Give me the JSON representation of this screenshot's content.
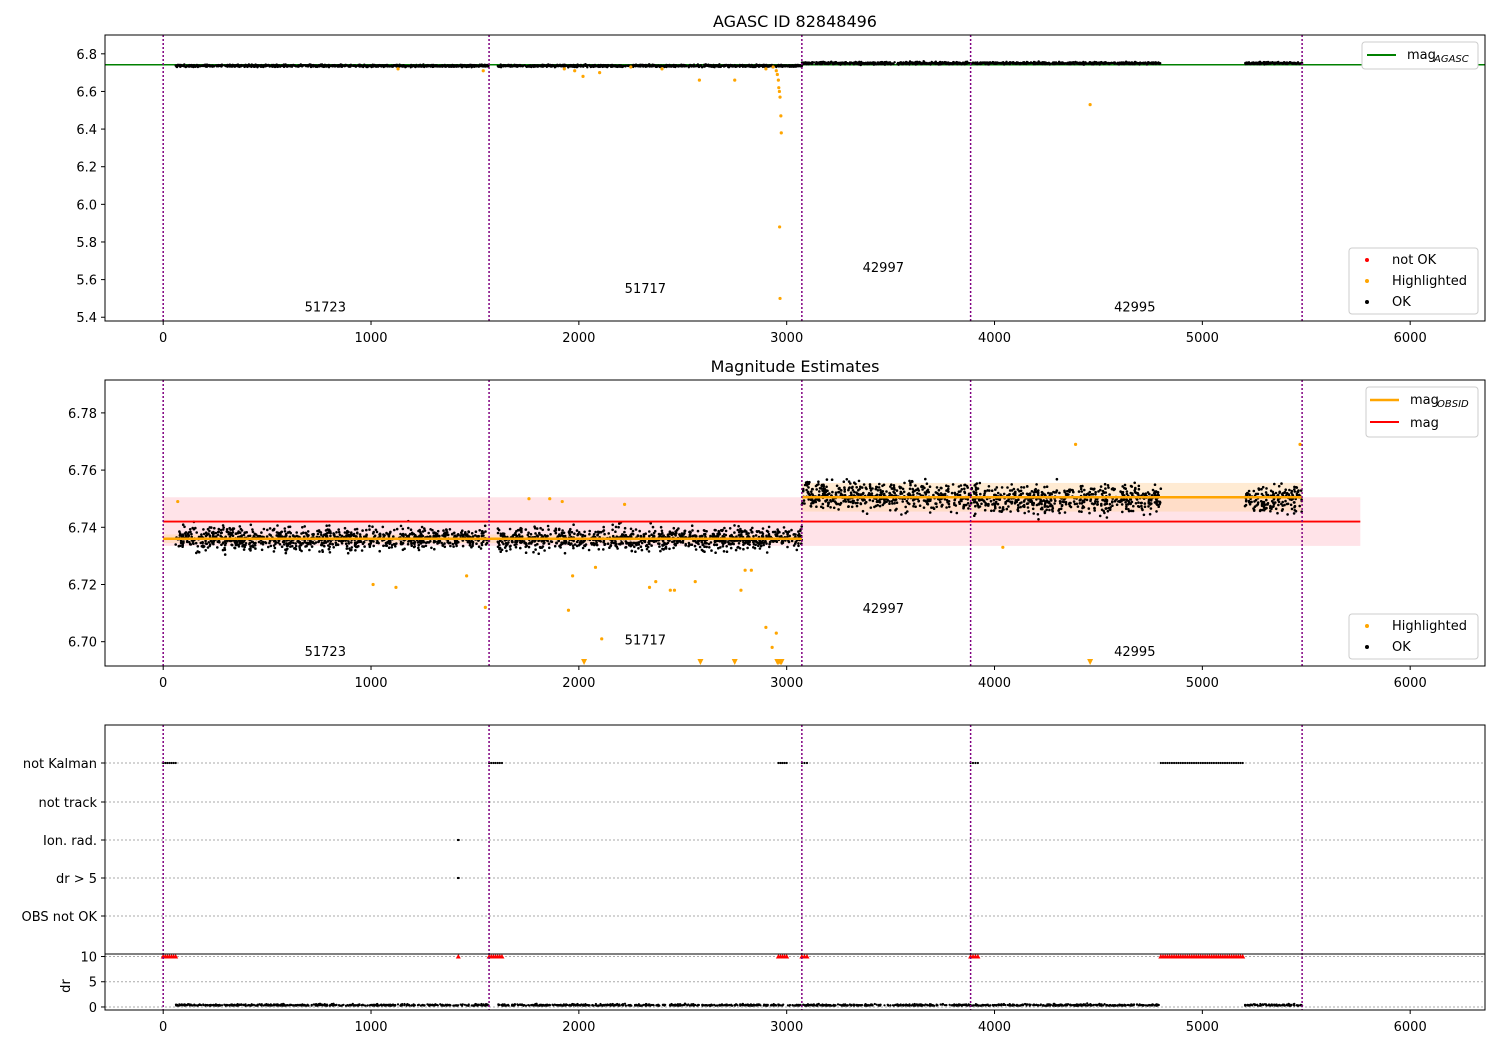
{
  "chart_data": [
    {
      "type": "scatter",
      "title": "AGASC ID 82848496",
      "xlim": [
        -280,
        6360
      ],
      "ylim": [
        5.38,
        6.9
      ],
      "x_ticks": [
        0,
        1000,
        2000,
        3000,
        4000,
        5000,
        6000
      ],
      "y_ticks": [
        5.4,
        5.6,
        5.8,
        6.0,
        6.2,
        6.4,
        6.6,
        6.8
      ],
      "y_tick_labels": [
        "5.4",
        "5.6",
        "5.8",
        "6.0",
        "6.2",
        "6.4",
        "6.6",
        "6.8"
      ],
      "obs_boundaries": [
        0,
        1568,
        3073,
        3885,
        5480
      ],
      "obsid_labels": [
        {
          "text": "51723",
          "x": 780,
          "y": 5.43
        },
        {
          "text": "51717",
          "x": 2320,
          "y": 5.53
        },
        {
          "text": "42997",
          "x": 3465,
          "y": 5.64
        },
        {
          "text": "42995",
          "x": 4675,
          "y": 5.43
        }
      ],
      "reference_line": {
        "name": "mag",
        "subscript": "AGASC",
        "y": 6.742,
        "x_range": [
          -280,
          6360
        ],
        "color": "#008000"
      },
      "segments": [
        {
          "x_range": [
            60,
            1568
          ],
          "mean": 6.736,
          "spread": 0.006
        },
        {
          "x_range": [
            1610,
            3073
          ],
          "mean": 6.736,
          "spread": 0.006
        },
        {
          "x_range": [
            3073,
            3885
          ],
          "mean": 6.75,
          "spread": 0.007
        },
        {
          "x_range": [
            3885,
            4800
          ],
          "mean": 6.75,
          "spread": 0.006
        },
        {
          "x_range": [
            5205,
            5480
          ],
          "mean": 6.75,
          "spread": 0.006
        }
      ],
      "highlighted_points": [
        [
          1130,
          6.72
        ],
        [
          1540,
          6.71
        ],
        [
          1930,
          6.72
        ],
        [
          1980,
          6.71
        ],
        [
          2020,
          6.68
        ],
        [
          2100,
          6.7
        ],
        [
          2250,
          6.73
        ],
        [
          2400,
          6.72
        ],
        [
          2580,
          6.66
        ],
        [
          2750,
          6.66
        ],
        [
          2900,
          6.72
        ],
        [
          2935,
          6.73
        ],
        [
          2950,
          6.71
        ],
        [
          2955,
          6.69
        ],
        [
          2960,
          6.66
        ],
        [
          2962,
          6.62
        ],
        [
          2965,
          6.6
        ],
        [
          2968,
          6.57
        ],
        [
          2972,
          6.47
        ],
        [
          2974,
          6.38
        ],
        [
          2966,
          5.88
        ],
        [
          2968,
          5.5
        ],
        [
          4460,
          6.53
        ]
      ],
      "legend": {
        "position": "lower right",
        "entries": [
          {
            "label": "not OK",
            "color": "#ff0000"
          },
          {
            "label": "Highlighted",
            "color": "#ffa500"
          },
          {
            "label": "OK",
            "color": "#000000"
          }
        ]
      },
      "colors": {
        "ok": "#000000",
        "highlighted": "#ffa500",
        "not_ok": "#ff0000",
        "boundary": "#800080"
      }
    },
    {
      "type": "scatter",
      "title": "Magnitude Estimates",
      "xlim": [
        -280,
        6360
      ],
      "ylim": [
        6.6915,
        6.7915
      ],
      "x_ticks": [
        0,
        1000,
        2000,
        3000,
        4000,
        5000,
        6000
      ],
      "y_ticks": [
        6.7,
        6.72,
        6.74,
        6.76,
        6.78
      ],
      "y_tick_labels": [
        "6.70",
        "6.72",
        "6.74",
        "6.76",
        "6.78"
      ],
      "obs_boundaries": [
        0,
        1568,
        3073,
        3885,
        5480
      ],
      "obsid_labels": [
        {
          "text": "51723",
          "x": 780,
          "y": 6.695
        },
        {
          "text": "51717",
          "x": 2320,
          "y": 6.699
        },
        {
          "text": "42997",
          "x": 3465,
          "y": 6.71
        },
        {
          "text": "42995",
          "x": 4675,
          "y": 6.695
        }
      ],
      "mag_line": {
        "name": "mag",
        "y": 6.742,
        "band": [
          6.7335,
          6.7505
        ],
        "x_range": [
          0,
          5760
        ],
        "color": "#ff0000"
      },
      "obsid_mag_segments": [
        {
          "x_range": [
            0,
            3073
          ],
          "y": 6.736,
          "band": [
            6.7345,
            6.7375
          ]
        },
        {
          "x_range": [
            3073,
            5480
          ],
          "y": 6.7505,
          "band": [
            6.7455,
            6.7555
          ]
        }
      ],
      "segments": [
        {
          "x_range": [
            60,
            1568
          ],
          "mean": 6.736,
          "spread": 0.004
        },
        {
          "x_range": [
            1610,
            3073
          ],
          "mean": 6.736,
          "spread": 0.004
        },
        {
          "x_range": [
            3073,
            3885
          ],
          "mean": 6.751,
          "spread": 0.005
        },
        {
          "x_range": [
            3885,
            4800
          ],
          "mean": 6.75,
          "spread": 0.005
        },
        {
          "x_range": [
            5205,
            5480
          ],
          "mean": 6.75,
          "spread": 0.005
        }
      ],
      "highlighted_points": [
        [
          70,
          6.749
        ],
        [
          1010,
          6.72
        ],
        [
          1120,
          6.719
        ],
        [
          1460,
          6.723
        ],
        [
          1550,
          6.712
        ],
        [
          1760,
          6.75
        ],
        [
          1860,
          6.75
        ],
        [
          1920,
          6.749
        ],
        [
          1950,
          6.711
        ],
        [
          1970,
          6.723
        ],
        [
          2080,
          6.726
        ],
        [
          2110,
          6.701
        ],
        [
          2220,
          6.748
        ],
        [
          2340,
          6.719
        ],
        [
          2370,
          6.721
        ],
        [
          2440,
          6.718
        ],
        [
          2460,
          6.718
        ],
        [
          2560,
          6.721
        ],
        [
          2780,
          6.718
        ],
        [
          2800,
          6.725
        ],
        [
          2830,
          6.725
        ],
        [
          2900,
          6.705
        ],
        [
          2950,
          6.703
        ],
        [
          2930,
          6.698
        ],
        [
          4040,
          6.733
        ],
        [
          4390,
          6.769
        ],
        [
          5470,
          6.769
        ]
      ],
      "off_scale_markers": [
        2025,
        2585,
        2750,
        2955,
        2962,
        2970,
        2975,
        4460
      ],
      "legend": {
        "position": "lower right",
        "entries": [
          {
            "label": "Highlighted",
            "color": "#ffa500"
          },
          {
            "label": "OK",
            "color": "#000000"
          }
        ]
      },
      "legend_lines": {
        "position": "upper right",
        "entries": [
          {
            "label": "mag",
            "subscript": "OBSID",
            "color": "#ffa500"
          },
          {
            "label": "mag",
            "color": "#ff0000"
          }
        ]
      },
      "colors": {
        "ok": "#000000",
        "highlighted": "#ffa500",
        "band_red": "#ffc0cb",
        "band_orange": "#ffd8a8",
        "boundary": "#800080"
      }
    },
    {
      "type": "scatter",
      "xlim": [
        -280,
        6360
      ],
      "x_ticks": [
        0,
        1000,
        2000,
        3000,
        4000,
        5000,
        6000
      ],
      "obs_boundaries": [
        0,
        1568,
        3073,
        3885,
        5480
      ],
      "flag_categories": [
        "not Kalman",
        "not track",
        "Ion. rad.",
        "dr > 5",
        "OBS not OK"
      ],
      "flag_rows": {
        "not Kalman": [
          [
            0,
            60
          ],
          [
            1568,
            1630
          ],
          [
            2960,
            3000
          ],
          [
            3073,
            3110
          ],
          [
            3885,
            3920
          ],
          [
            4800,
            5205
          ]
        ],
        "not track": [],
        "Ion. rad.": [
          [
            1418,
            1422
          ]
        ],
        "dr > 5": [
          [
            1418,
            1422
          ]
        ],
        "OBS not OK": []
      },
      "dr_panel": {
        "ylabel": "dr",
        "ylim": [
          -0.6,
          10.5
        ],
        "y_ticks": [
          0,
          5,
          10
        ],
        "y_tick_labels": [
          "0",
          "5",
          "10"
        ],
        "clipped_ranges": [
          [
            0,
            60
          ],
          [
            1568,
            1630
          ],
          [
            2960,
            3000
          ],
          [
            3073,
            3110
          ],
          [
            3885,
            3920
          ],
          [
            4800,
            5205
          ]
        ],
        "clipped_single": [
          1420
        ],
        "segments": [
          [
            60,
            1568
          ],
          [
            1610,
            3073
          ],
          [
            3073,
            3885
          ],
          [
            3885,
            4800
          ],
          [
            5205,
            5480
          ]
        ],
        "base_value": 0.25
      },
      "colors": {
        "points": "#000000",
        "clipped": "#ff0000",
        "boundary": "#800080"
      }
    }
  ]
}
